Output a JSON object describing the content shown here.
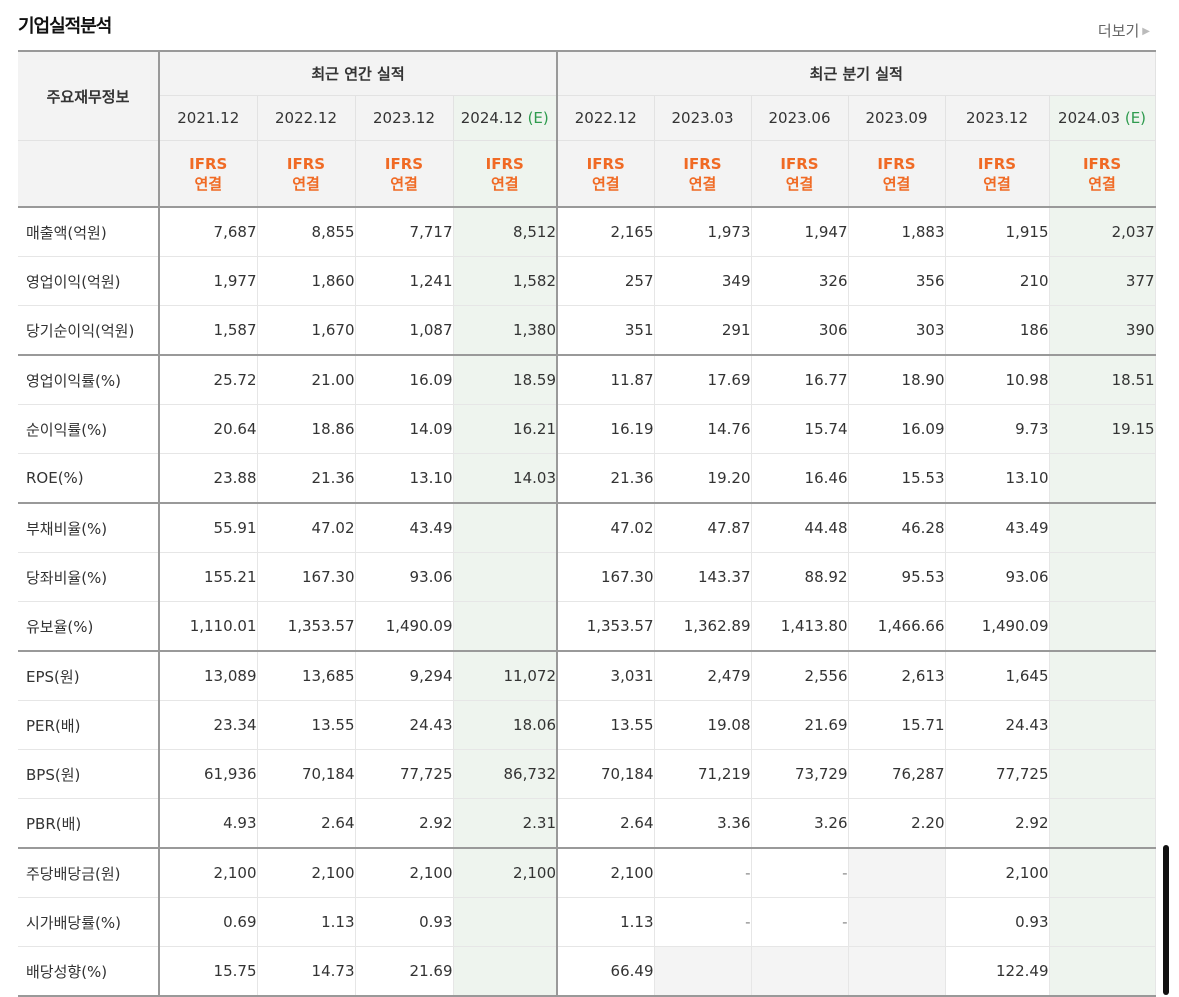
{
  "title": "기업실적분석",
  "more_label": "더보기",
  "header": {
    "label": "주요재무정보",
    "annual_label": "최근 연간 실적",
    "quarter_label": "최근 분기 실적",
    "periods": [
      {
        "text": "2021.12",
        "est": ""
      },
      {
        "text": "2022.12",
        "est": ""
      },
      {
        "text": "2023.12",
        "est": ""
      },
      {
        "text": "2024.12",
        "est": "(E)"
      },
      {
        "text": "2022.12",
        "est": ""
      },
      {
        "text": "2023.03",
        "est": ""
      },
      {
        "text": "2023.06",
        "est": ""
      },
      {
        "text": "2023.09",
        "est": ""
      },
      {
        "text": "2023.12",
        "est": ""
      },
      {
        "text": "2024.03",
        "est": "(E)"
      }
    ],
    "ifrs_line1": "IFRS",
    "ifrs_line2": "연결"
  },
  "rows": [
    {
      "label": "매출액(억원)",
      "values": [
        "7,687",
        "8,855",
        "7,717",
        "8,512",
        "2,165",
        "1,973",
        "1,947",
        "1,883",
        "1,915",
        "2,037"
      ]
    },
    {
      "label": "영업이익(억원)",
      "values": [
        "1,977",
        "1,860",
        "1,241",
        "1,582",
        "257",
        "349",
        "326",
        "356",
        "210",
        "377"
      ]
    },
    {
      "label": "당기순이익(억원)",
      "values": [
        "1,587",
        "1,670",
        "1,087",
        "1,380",
        "351",
        "291",
        "306",
        "303",
        "186",
        "390"
      ]
    },
    {
      "label": "영업이익률(%)",
      "values": [
        "25.72",
        "21.00",
        "16.09",
        "18.59",
        "11.87",
        "17.69",
        "16.77",
        "18.90",
        "10.98",
        "18.51"
      ]
    },
    {
      "label": "순이익률(%)",
      "values": [
        "20.64",
        "18.86",
        "14.09",
        "16.21",
        "16.19",
        "14.76",
        "15.74",
        "16.09",
        "9.73",
        "19.15"
      ]
    },
    {
      "label": "ROE(%)",
      "values": [
        "23.88",
        "21.36",
        "13.10",
        "14.03",
        "21.36",
        "19.20",
        "16.46",
        "15.53",
        "13.10",
        ""
      ]
    },
    {
      "label": "부채비율(%)",
      "values": [
        "55.91",
        "47.02",
        "43.49",
        "",
        "47.02",
        "47.87",
        "44.48",
        "46.28",
        "43.49",
        ""
      ]
    },
    {
      "label": "당좌비율(%)",
      "values": [
        "155.21",
        "167.30",
        "93.06",
        "",
        "167.30",
        "143.37",
        "88.92",
        "95.53",
        "93.06",
        ""
      ]
    },
    {
      "label": "유보율(%)",
      "values": [
        "1,110.01",
        "1,353.57",
        "1,490.09",
        "",
        "1,353.57",
        "1,362.89",
        "1,413.80",
        "1,466.66",
        "1,490.09",
        ""
      ]
    },
    {
      "label": "EPS(원)",
      "values": [
        "13,089",
        "13,685",
        "9,294",
        "11,072",
        "3,031",
        "2,479",
        "2,556",
        "2,613",
        "1,645",
        ""
      ]
    },
    {
      "label": "PER(배)",
      "values": [
        "23.34",
        "13.55",
        "24.43",
        "18.06",
        "13.55",
        "19.08",
        "21.69",
        "15.71",
        "24.43",
        ""
      ]
    },
    {
      "label": "BPS(원)",
      "values": [
        "61,936",
        "70,184",
        "77,725",
        "86,732",
        "70,184",
        "71,219",
        "73,729",
        "76,287",
        "77,725",
        ""
      ]
    },
    {
      "label": "PBR(배)",
      "values": [
        "4.93",
        "2.64",
        "2.92",
        "2.31",
        "2.64",
        "3.36",
        "3.26",
        "2.20",
        "2.92",
        ""
      ]
    },
    {
      "label": "주당배당금(원)",
      "values": [
        "2,100",
        "2,100",
        "2,100",
        "2,100",
        "2,100",
        "-",
        "-",
        "",
        "2,100",
        ""
      ]
    },
    {
      "label": "시가배당률(%)",
      "values": [
        "0.69",
        "1.13",
        "0.93",
        "",
        "1.13",
        "-",
        "-",
        "",
        "0.93",
        ""
      ]
    },
    {
      "label": "배당성향(%)",
      "values": [
        "15.75",
        "14.73",
        "21.69",
        "",
        "66.49",
        "",
        "",
        "",
        "122.49",
        ""
      ]
    }
  ]
}
